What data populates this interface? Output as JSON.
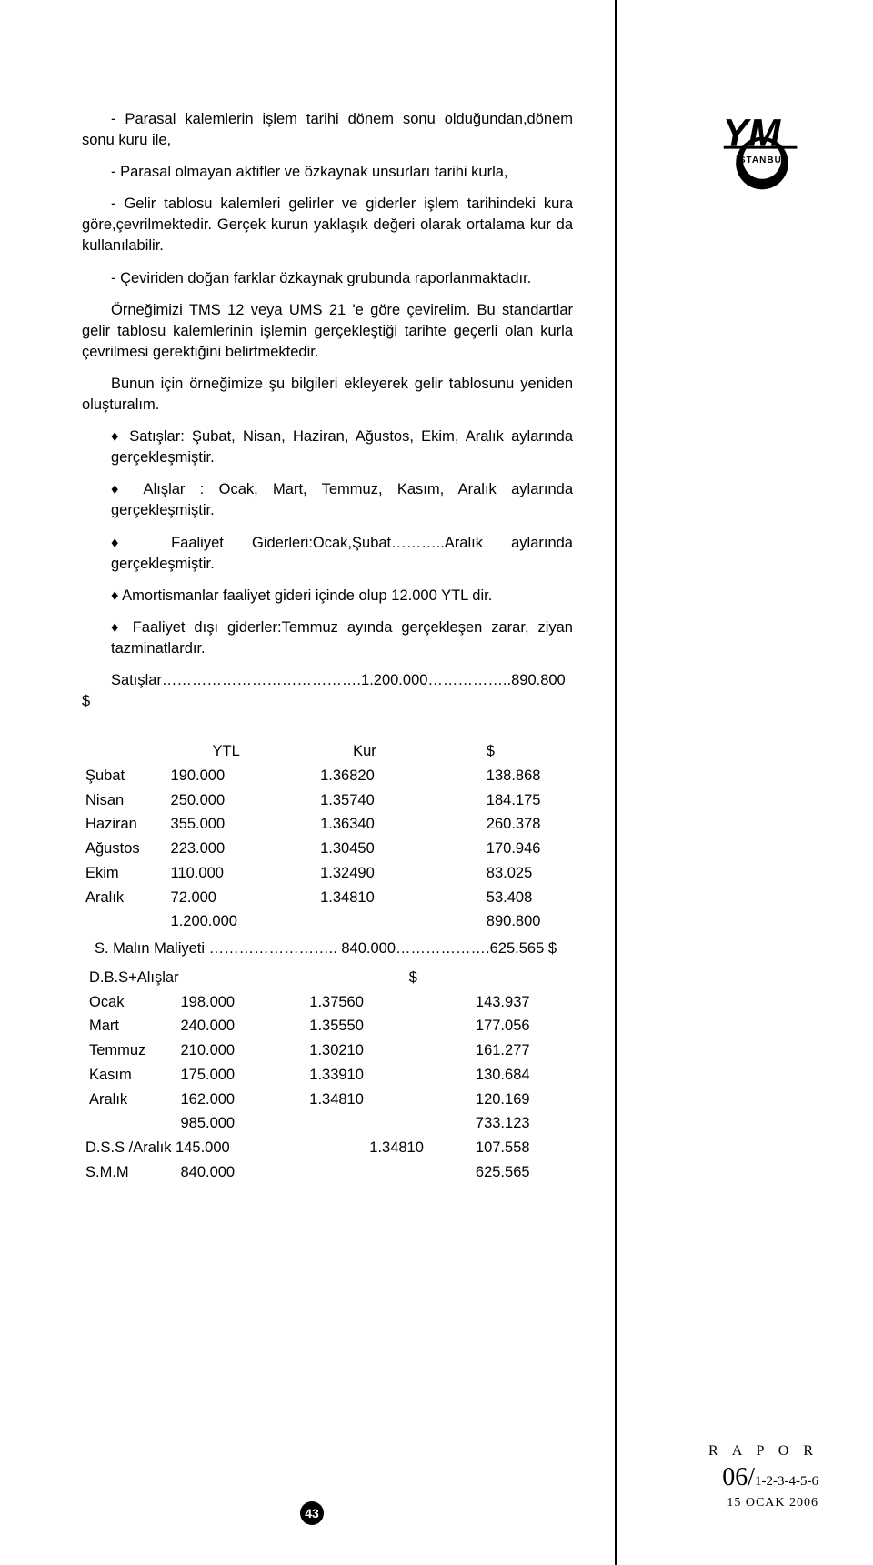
{
  "body": {
    "p1": "- Parasal kalemlerin işlem tarihi dönem sonu olduğundan,dönem sonu kuru ile,",
    "p2": "- Parasal olmayan aktifler ve özkaynak unsurları tarihi kurla,",
    "p3": "- Gelir tablosu kalemleri gelirler ve giderler işlem tarihindeki kura göre,çevrilmektedir. Gerçek kurun yaklaşık değeri olarak ortalama kur da kullanılabilir.",
    "p4": "- Çeviriden doğan farklar özkaynak grubunda raporlanmaktadır.",
    "p5": "Örneğimizi TMS 12 veya UMS  21 'e göre çevirelim. Bu standartlar gelir tablosu kalemlerinin işlemin gerçekleştiği tarihte geçerli olan kurla çevrilmesi gerektiğini belirtmektedir.",
    "p6": "Bunun için örneğimize şu bilgileri ekleyerek  gelir tablosunu yeniden oluşturalım.",
    "b1": "♦  Satışlar: Şubat, Nisan, Haziran, Ağustos, Ekim, Aralık aylarında gerçekleşmiştir.",
    "b2": "♦  Alışlar : Ocak, Mart, Temmuz, Kasım, Aralık aylarında gerçekleşmiştir.",
    "b3": "♦  Faaliyet Giderleri:Ocak,Şubat………..Aralık aylarında gerçekleşmiştir.",
    "b4": "♦  Amortismanlar faaliyet gideri içinde olup 12.000 YTL dir.",
    "b5": "♦  Faaliyet dışı giderler:Temmuz ayında gerçekleşen zarar, ziyan tazminatlardır.",
    "p7": "Satışlar………………………………….1.200.000……………..890.800 $"
  },
  "tableA": {
    "h_ytl": "YTL",
    "h_kur": "Kur",
    "h_d": "$",
    "rows": [
      {
        "m": "Şubat",
        "y": "190.000",
        "k": "1.36820",
        "d": "138.868"
      },
      {
        "m": "Nisan",
        "y": "250.000",
        "k": "1.35740",
        "d": "184.175"
      },
      {
        "m": "Haziran",
        "y": "355.000",
        "k": "1.36340",
        "d": "260.378"
      },
      {
        "m": "Ağustos",
        "y": "223.000",
        "k": "1.30450",
        "d": "170.946"
      },
      {
        "m": "Ekim",
        "y": "110.000",
        "k": "1.32490",
        "d": "83.025"
      },
      {
        "m": "Aralık",
        "y": "72.000",
        "k": "1.34810",
        "d": "53.408"
      }
    ],
    "tot_y": "1.200.000",
    "tot_d": "890.800"
  },
  "lineS": "S. Malın Maliyeti ……………………..   840.000……………….625.565 $",
  "tableB": {
    "h_l": "D.B.S+Alışlar",
    "h_d": "$",
    "rows": [
      {
        "m": "Ocak",
        "y": "198.000",
        "k": "1.37560",
        "d": "143.937"
      },
      {
        "m": "Mart",
        "y": "240.000",
        "k": "1.35550",
        "d": "177.056"
      },
      {
        "m": "Temmuz",
        "y": "210.000",
        "k": "1.30210",
        "d": "161.277"
      },
      {
        "m": "Kasım",
        "y": "175.000",
        "k": "1.33910",
        "d": "130.684"
      },
      {
        "m": "Aralık",
        "y": "162.000",
        "k": "1.34810",
        "d": "120.169"
      }
    ],
    "tot_y": "985.000",
    "tot_d": "733.123",
    "dss": {
      "m": "D.S.S /Aralık",
      "y": "145.000",
      "k": "1.34810",
      "d": "107.558"
    },
    "smm": {
      "m": "S.M.M",
      "y": "840.000",
      "k": "",
      "d": "625.565"
    }
  },
  "logo": {
    "text": "İSTANBUL"
  },
  "footer": {
    "rapor": "R A P O R",
    "issue_big": "06/",
    "issue_small": "1-2-3-4-5-6",
    "date": "15 OCAK 2006"
  },
  "page_number": "43",
  "colors": {
    "text": "#000000",
    "bg": "#ffffff"
  }
}
